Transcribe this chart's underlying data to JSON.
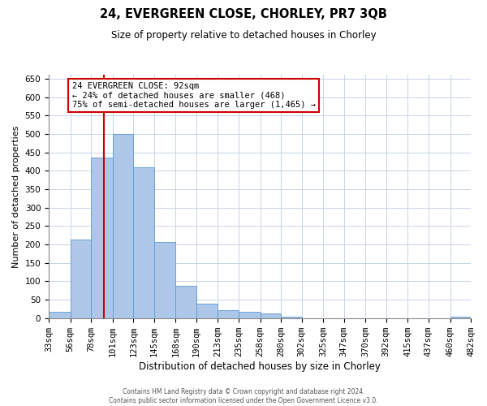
{
  "title": "24, EVERGREEN CLOSE, CHORLEY, PR7 3QB",
  "subtitle": "Size of property relative to detached houses in Chorley",
  "xlabel": "Distribution of detached houses by size in Chorley",
  "ylabel": "Number of detached properties",
  "footer_line1": "Contains HM Land Registry data © Crown copyright and database right 2024.",
  "footer_line2": "Contains public sector information licensed under the Open Government Licence v3.0.",
  "annotation_line1": "24 EVERGREEN CLOSE: 92sqm",
  "annotation_line2": "← 24% of detached houses are smaller (468)",
  "annotation_line3": "75% of semi-detached houses are larger (1,465) →",
  "bar_edges": [
    33,
    56,
    78,
    101,
    123,
    145,
    168,
    190,
    213,
    235,
    258,
    280,
    302,
    325,
    347,
    370,
    392,
    415,
    437,
    460,
    482
  ],
  "bar_heights": [
    18,
    213,
    437,
    500,
    410,
    207,
    88,
    40,
    22,
    18,
    12,
    3,
    0,
    0,
    0,
    0,
    0,
    0,
    0,
    3
  ],
  "bar_color": "#aec6e8",
  "bar_edge_color": "#5b9bd5",
  "property_line_x": 92,
  "annotation_box_edge_color": "#cc0000",
  "ylim": [
    0,
    660
  ],
  "yticks": [
    0,
    50,
    100,
    150,
    200,
    250,
    300,
    350,
    400,
    450,
    500,
    550,
    600,
    650
  ],
  "background_color": "#ffffff",
  "grid_color": "#c8d4e8",
  "title_fontsize": 10.5,
  "subtitle_fontsize": 8.5,
  "xlabel_fontsize": 8.5,
  "ylabel_fontsize": 8,
  "tick_fontsize": 7.5,
  "annotation_fontsize": 7.5,
  "footer_fontsize": 5.5
}
